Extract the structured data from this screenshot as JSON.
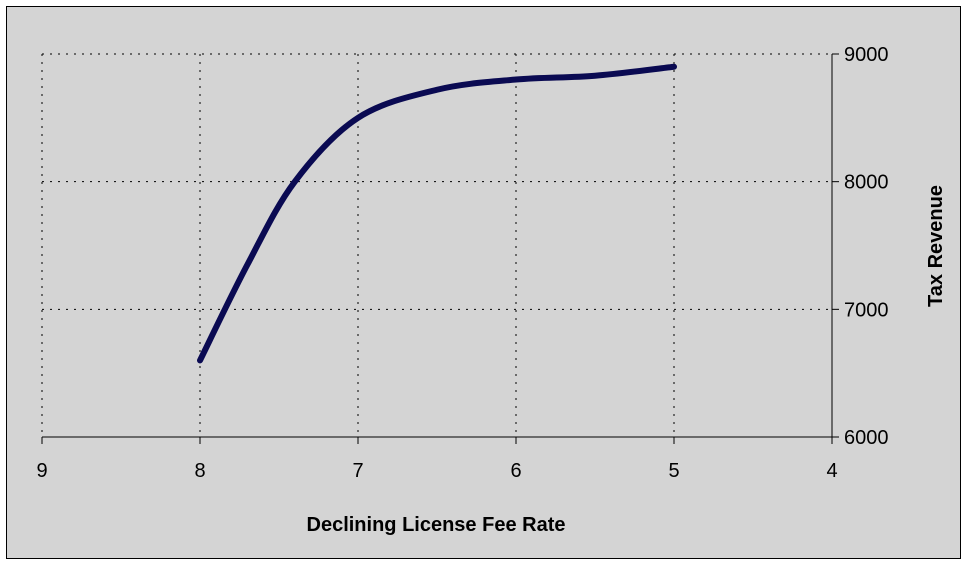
{
  "chart_data": {
    "type": "line",
    "title": "",
    "xlabel": "Declining License Fee Rate",
    "ylabel": "Tax Revenue",
    "x_axis_reversed": true,
    "xlim": [
      4,
      9
    ],
    "ylim": [
      6000,
      9000
    ],
    "x_ticks": [
      9,
      8,
      7,
      6,
      5,
      4
    ],
    "y_ticks": [
      6000,
      7000,
      8000,
      9000
    ],
    "y_axis_side": "right",
    "grid": true,
    "smooth": true,
    "series": [
      {
        "x": [
          8,
          7.7,
          7.4,
          7,
          6.5,
          6,
          5.5,
          5
        ],
        "y": [
          6600,
          7350,
          8000,
          8500,
          8720,
          8800,
          8830,
          8900
        ]
      }
    ],
    "colors": {
      "line": "#0a0a52",
      "plot_background": "#d4d4d4",
      "grid": "#000000"
    }
  }
}
